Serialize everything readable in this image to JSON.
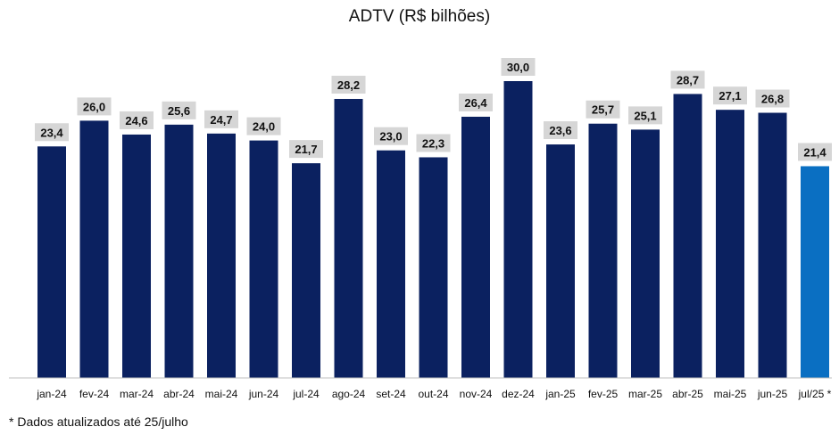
{
  "chart_data": {
    "type": "bar",
    "title": "ADTV (R$ bilhões)",
    "categories": [
      "jan-24",
      "fev-24",
      "mar-24",
      "abr-24",
      "mai-24",
      "jun-24",
      "jul-24",
      "ago-24",
      "set-24",
      "out-24",
      "nov-24",
      "dez-24",
      "jan-25",
      "fev-25",
      "mar-25",
      "abr-25",
      "mai-25",
      "jun-25",
      "jul/25 *"
    ],
    "values": [
      23.4,
      26.0,
      24.6,
      25.6,
      24.7,
      24.0,
      21.7,
      28.2,
      23.0,
      22.3,
      26.4,
      30.0,
      23.6,
      25.7,
      25.1,
      28.7,
      27.1,
      26.8,
      21.4
    ],
    "value_labels": [
      "23,4",
      "26,0",
      "24,6",
      "25,6",
      "24,7",
      "24,0",
      "21,7",
      "28,2",
      "23,0",
      "22,3",
      "26,4",
      "30,0",
      "23,6",
      "25,7",
      "25,1",
      "28,7",
      "27,1",
      "26,8",
      "21,4"
    ],
    "ylim": [
      0,
      30
    ],
    "grid": false,
    "legend": "none",
    "colors": {
      "bar": "#0b2160",
      "highlight_bar": "#0a6fc2",
      "label_background": "#d6d6d6",
      "axis": "#bfbfbf"
    },
    "highlight_index": 18
  },
  "footnote": "* Dados atualizados até 25/julho"
}
